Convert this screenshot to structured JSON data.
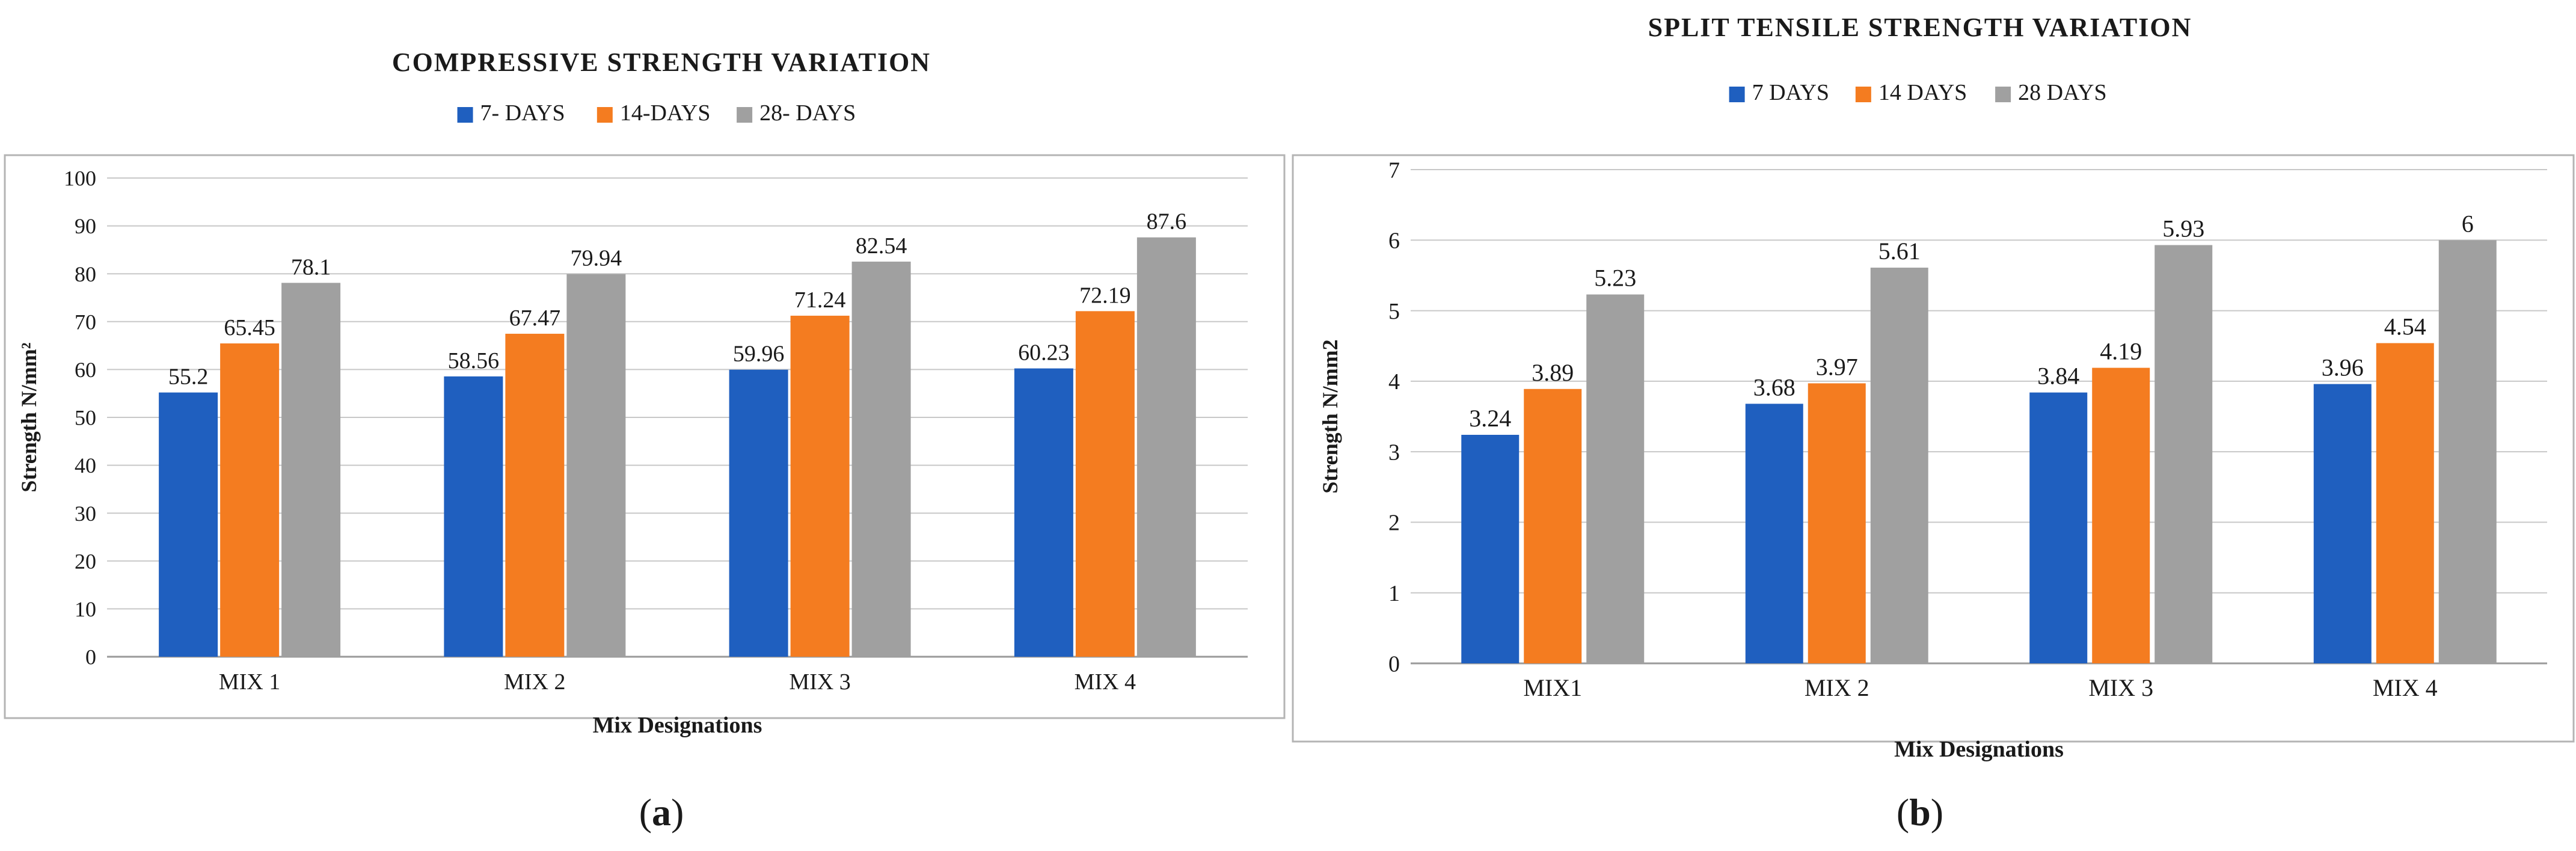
{
  "colors": {
    "series": [
      "#1f5fbf",
      "#f47c20",
      "#a0a0a0"
    ],
    "grid": "#c8c8c8",
    "axis": "#9a9a9a",
    "text": "#1a1a1a",
    "panel_border": "#b4b4b4"
  },
  "chart_data": [
    {
      "type": "bar",
      "panel_label": "(a)",
      "title": "COMPRESSIVE STRENGTH VARIATION",
      "ylabel": "Strength N/mm²",
      "xlabel": "Mix Designations",
      "categories": [
        "MIX 1",
        "MIX 2",
        "MIX 3",
        "MIX 4"
      ],
      "ylim": [
        0,
        100
      ],
      "yticks": [
        0,
        10,
        20,
        30,
        40,
        50,
        60,
        70,
        80,
        90,
        100
      ],
      "grid": true,
      "legend_position": "top",
      "series": [
        {
          "name": "7- DAYS",
          "values": [
            55.2,
            58.56,
            59.96,
            60.23
          ],
          "labels": [
            "55.2",
            "58.56",
            "59.96",
            "60.23"
          ]
        },
        {
          "name": "14-DAYS",
          "values": [
            65.45,
            67.47,
            71.24,
            72.19
          ],
          "labels": [
            "65.45",
            "67.47",
            "71.24",
            "72.19"
          ]
        },
        {
          "name": "28- DAYS",
          "values": [
            78.1,
            79.94,
            82.54,
            87.6
          ],
          "labels": [
            "78.1",
            "79.94",
            "82.54",
            "87.6"
          ]
        }
      ]
    },
    {
      "type": "bar",
      "panel_label": "(b)",
      "title": "SPLIT TENSILE STRENGTH VARIATION",
      "ylabel": "Strength N/mm2",
      "xlabel": "Mix Designations",
      "categories": [
        "MIX1",
        "MIX 2",
        "MIX 3",
        "MIX 4"
      ],
      "ylim": [
        0,
        7
      ],
      "yticks": [
        0,
        1,
        2,
        3,
        4,
        5,
        6,
        7
      ],
      "grid": true,
      "legend_position": "top",
      "series": [
        {
          "name": "7 DAYS",
          "values": [
            3.24,
            3.68,
            3.84,
            3.96
          ],
          "labels": [
            "3.24",
            "3.68",
            "3.84",
            "3.96"
          ]
        },
        {
          "name": "14 DAYS",
          "values": [
            3.89,
            3.97,
            4.19,
            4.54
          ],
          "labels": [
            "3.89",
            "3.97",
            "4.19",
            "4.54"
          ]
        },
        {
          "name": "28 DAYS",
          "values": [
            5.23,
            5.61,
            5.93,
            6
          ],
          "labels": [
            "5.23",
            "5.61",
            "5.93",
            "6"
          ]
        }
      ]
    }
  ]
}
